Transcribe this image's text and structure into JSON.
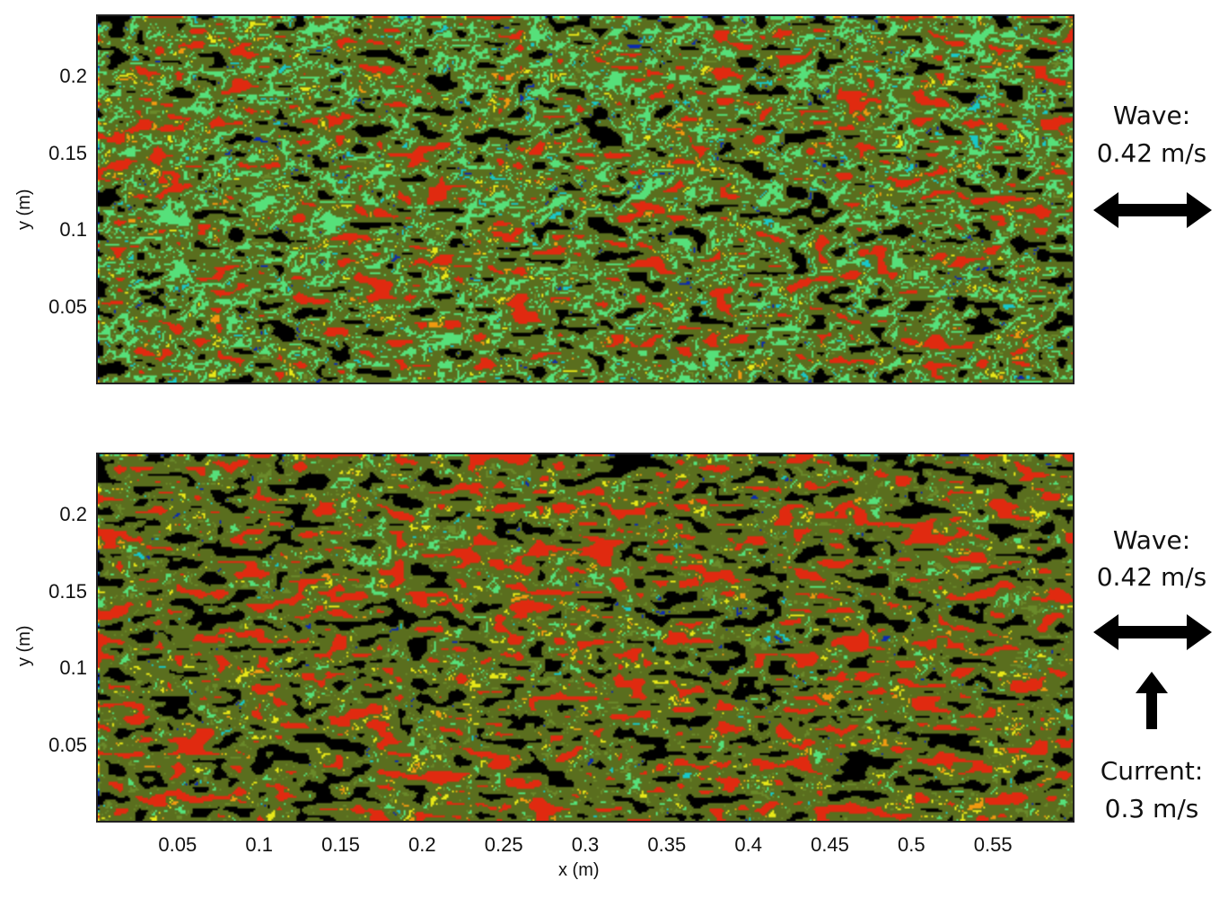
{
  "chart_data": [
    {
      "type": "heatmap",
      "panel": "top",
      "xlabel": "",
      "ylabel": "y (m)",
      "xlim": [
        0,
        0.6
      ],
      "ylim": [
        0,
        0.24
      ],
      "yticks": [
        "0.05",
        "0.1",
        "0.15",
        "0.2"
      ],
      "ytick_values": [
        0.05,
        0.1,
        0.15,
        0.2
      ],
      "xticks": [],
      "colors": [
        "#000000",
        "#0a2bb0",
        "#18c8c8",
        "#56e07a",
        "#6a8a2a",
        "#e8e818",
        "#f09a10",
        "#e02a10"
      ],
      "annotations": [
        {
          "label": "Wave:",
          "value": "0.42 m/s"
        }
      ],
      "arrows": [
        "horizontal-double"
      ]
    },
    {
      "type": "heatmap",
      "panel": "bottom",
      "xlabel": "x (m)",
      "ylabel": "y (m)",
      "xlim": [
        0,
        0.6
      ],
      "ylim": [
        0,
        0.24
      ],
      "yticks": [
        "0.05",
        "0.1",
        "0.15",
        "0.2"
      ],
      "ytick_values": [
        0.05,
        0.1,
        0.15,
        0.2
      ],
      "xticks": [
        "0.05",
        "0.1",
        "0.15",
        "0.2",
        "0.25",
        "0.3",
        "0.35",
        "0.4",
        "0.45",
        "0.5",
        "0.55"
      ],
      "xtick_values": [
        0.05,
        0.1,
        0.15,
        0.2,
        0.25,
        0.3,
        0.35,
        0.4,
        0.45,
        0.5,
        0.55
      ],
      "colors": [
        "#000000",
        "#0a2bb0",
        "#18c8c8",
        "#56e07a",
        "#6a8a2a",
        "#e8e818",
        "#f09a10",
        "#e02a10"
      ],
      "annotations": [
        {
          "label": "Wave:",
          "value": "0.42 m/s"
        },
        {
          "label": "Current:",
          "value": "0.3 m/s"
        }
      ],
      "arrows": [
        "horizontal-double",
        "up"
      ]
    }
  ]
}
